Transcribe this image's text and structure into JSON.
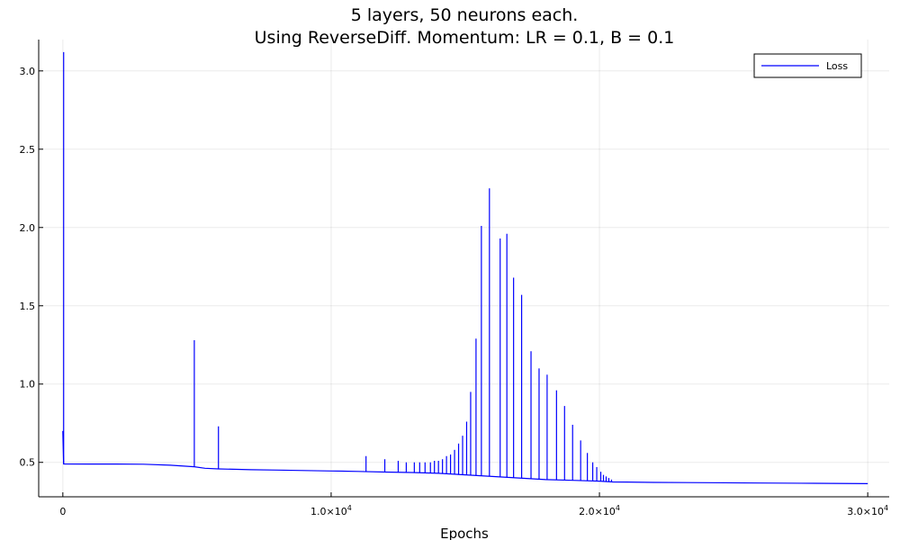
{
  "chart_data": {
    "type": "line",
    "title": "5 layers, 50 neurons each.",
    "subtitle": "Using ReverseDiff. Momentum: LR = 0.1, B = 0.1",
    "xlabel": "Epochs",
    "ylabel": "",
    "xlim": [
      -900,
      30800
    ],
    "ylim": [
      0.28,
      3.2
    ],
    "x_ticks": [
      0,
      10000,
      20000,
      30000
    ],
    "x_tick_labels": [
      {
        "base": "0",
        "exp": ""
      },
      {
        "base": "1.0×10",
        "exp": "4"
      },
      {
        "base": "2.0×10",
        "exp": "4"
      },
      {
        "base": "3.0×10",
        "exp": "4"
      }
    ],
    "y_ticks": [
      0.5,
      1.0,
      1.5,
      2.0,
      2.5,
      3.0
    ],
    "y_tick_labels": [
      "0.5",
      "1.0",
      "1.5",
      "2.0",
      "2.5",
      "3.0"
    ],
    "grid": true,
    "legend": {
      "position": "top-right",
      "entries": [
        "Loss"
      ]
    },
    "series": [
      {
        "name": "Loss",
        "color": "#0000ff",
        "baseline": [
          [
            0,
            0.7
          ],
          [
            30,
            0.49
          ],
          [
            1000,
            0.489
          ],
          [
            2000,
            0.489
          ],
          [
            3000,
            0.488
          ],
          [
            4000,
            0.482
          ],
          [
            4900,
            0.472
          ],
          [
            5300,
            0.462
          ],
          [
            5800,
            0.458
          ],
          [
            7000,
            0.453
          ],
          [
            8000,
            0.451
          ],
          [
            9000,
            0.448
          ],
          [
            10000,
            0.445
          ],
          [
            11000,
            0.442
          ],
          [
            12000,
            0.438
          ],
          [
            13000,
            0.435
          ],
          [
            14000,
            0.43
          ],
          [
            15000,
            0.42
          ],
          [
            16000,
            0.41
          ],
          [
            17000,
            0.4
          ],
          [
            18000,
            0.39
          ],
          [
            19000,
            0.385
          ],
          [
            20000,
            0.38
          ],
          [
            20500,
            0.375
          ],
          [
            21000,
            0.374
          ],
          [
            22000,
            0.372
          ],
          [
            24000,
            0.37
          ],
          [
            26000,
            0.368
          ],
          [
            28000,
            0.366
          ],
          [
            30000,
            0.364
          ]
        ],
        "spikes": [
          [
            30,
            3.12
          ],
          [
            4900,
            1.28
          ],
          [
            5800,
            0.73
          ],
          [
            11300,
            0.54
          ],
          [
            12000,
            0.52
          ],
          [
            12500,
            0.51
          ],
          [
            12800,
            0.5
          ],
          [
            13100,
            0.5
          ],
          [
            13300,
            0.5
          ],
          [
            13500,
            0.5
          ],
          [
            13700,
            0.5
          ],
          [
            13850,
            0.51
          ],
          [
            14000,
            0.51
          ],
          [
            14150,
            0.52
          ],
          [
            14300,
            0.54
          ],
          [
            14450,
            0.55
          ],
          [
            14600,
            0.58
          ],
          [
            14750,
            0.62
          ],
          [
            14900,
            0.67
          ],
          [
            15050,
            0.76
          ],
          [
            15200,
            0.95
          ],
          [
            15400,
            1.29
          ],
          [
            15600,
            2.01
          ],
          [
            15900,
            2.25
          ],
          [
            16300,
            1.93
          ],
          [
            16550,
            1.96
          ],
          [
            16800,
            1.68
          ],
          [
            17100,
            1.57
          ],
          [
            17450,
            1.21
          ],
          [
            17750,
            1.1
          ],
          [
            18050,
            1.06
          ],
          [
            18400,
            0.96
          ],
          [
            18700,
            0.86
          ],
          [
            19000,
            0.74
          ],
          [
            19300,
            0.64
          ],
          [
            19550,
            0.56
          ],
          [
            19750,
            0.5
          ],
          [
            19900,
            0.47
          ],
          [
            20050,
            0.44
          ],
          [
            20150,
            0.42
          ],
          [
            20250,
            0.41
          ],
          [
            20350,
            0.4
          ],
          [
            20450,
            0.39
          ]
        ]
      }
    ]
  }
}
